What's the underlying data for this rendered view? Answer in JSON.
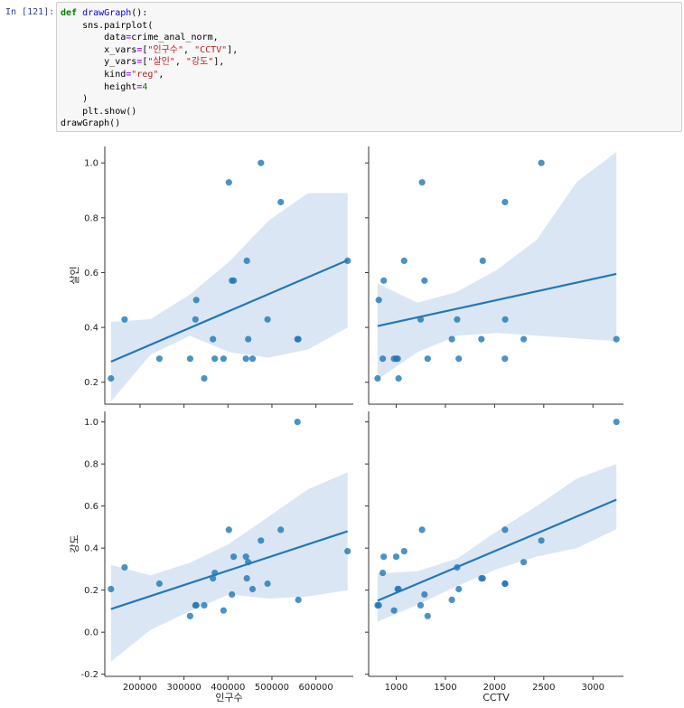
{
  "cell": {
    "prompt": "In [121]:",
    "code_lines": [
      [
        {
          "t": "def",
          "c": "kw"
        },
        {
          "t": " "
        },
        {
          "t": "drawGraph",
          "c": "fn"
        },
        {
          "t": "():"
        }
      ],
      [
        {
          "t": "    sns.pairplot("
        }
      ],
      [
        {
          "t": "        data"
        },
        {
          "t": "=",
          "c": "op"
        },
        {
          "t": "crime_anal_norm,"
        }
      ],
      [
        {
          "t": "        x_vars"
        },
        {
          "t": "=",
          "c": "op"
        },
        {
          "t": "["
        },
        {
          "t": "\"인구수\"",
          "c": "str"
        },
        {
          "t": ", "
        },
        {
          "t": "\"CCTV\"",
          "c": "str"
        },
        {
          "t": "],"
        }
      ],
      [
        {
          "t": "        y_vars"
        },
        {
          "t": "=",
          "c": "op"
        },
        {
          "t": "["
        },
        {
          "t": "\"살인\"",
          "c": "str"
        },
        {
          "t": ", "
        },
        {
          "t": "\"강도\"",
          "c": "str"
        },
        {
          "t": "],"
        }
      ],
      [
        {
          "t": "        kind"
        },
        {
          "t": "=",
          "c": "op"
        },
        {
          "t": "\"reg\"",
          "c": "str"
        },
        {
          "t": ","
        }
      ],
      [
        {
          "t": "        height"
        },
        {
          "t": "=",
          "c": "op"
        },
        {
          "t": "4",
          "c": "num"
        }
      ],
      [
        {
          "t": "    )"
        }
      ],
      [
        {
          "t": "    plt.show()"
        }
      ],
      [
        {
          "t": "drawGraph()"
        }
      ]
    ]
  },
  "colors": {
    "point": "#1f77b4",
    "line": "#2477b8",
    "band": "#c6d9ec"
  },
  "chart_data": {
    "type": "scatter",
    "kind": "pairplot-regression",
    "x_vars": [
      "인구수",
      "CCTV"
    ],
    "y_vars": [
      "살인",
      "강도"
    ],
    "xlabels": [
      "인구수",
      "CCTV"
    ],
    "ylabels": [
      "살인",
      "강도"
    ],
    "x_axes": [
      {
        "ticks": [
          200000,
          300000,
          400000,
          500000,
          600000
        ],
        "tick_labels": [
          "200000",
          "300000",
          "400000",
          "500000",
          "600000"
        ],
        "xlim": [
          120000,
          685000
        ]
      },
      {
        "ticks": [
          1000,
          1500,
          2000,
          2500,
          3000
        ],
        "tick_labels": [
          "1000",
          "1500",
          "2000",
          "2500",
          "3000"
        ],
        "xlim": [
          720,
          3310
        ]
      }
    ],
    "y_axes": [
      {
        "ticks": [
          0.2,
          0.4,
          0.6,
          0.8,
          1.0
        ],
        "tick_labels": [
          "0.2",
          "0.4",
          "0.6",
          "0.8",
          "1.0"
        ],
        "ylim": [
          0.12,
          1.06
        ]
      },
      {
        "ticks": [
          -0.2,
          0.0,
          0.2,
          0.4,
          0.6,
          0.8,
          1.0
        ],
        "tick_labels": [
          "-0.2",
          "0.0",
          "0.2",
          "0.4",
          "0.6",
          "0.8",
          "1.0"
        ],
        "ylim": [
          -0.21,
          1.05
        ]
      }
    ],
    "x_values": {
      "인구수": [
        134000,
        165000,
        244000,
        314000,
        326000,
        328000,
        346000,
        366000,
        370000,
        390000,
        402000,
        409000,
        413000,
        441000,
        443000,
        446000,
        456000,
        475000,
        490000,
        520000,
        558000,
        560000,
        672000
      ],
      "CCTV": [
        811,
        823,
        863,
        873,
        978,
        1000,
        1015,
        1024,
        1081,
        1248,
        1263,
        1288,
        1320,
        1566,
        1619,
        1636,
        1866,
        1880,
        2105,
        2106,
        2108,
        2296,
        2475,
        3238
      ]
    },
    "y_values": {
      "인구수_살인": [
        0.214,
        0.429,
        0.286,
        0.286,
        0.429,
        0.5,
        0.214,
        0.357,
        0.286,
        0.286,
        0.929,
        0.571,
        0.571,
        0.286,
        0.643,
        0.357,
        0.286,
        1.0,
        0.429,
        0.857,
        0.357,
        0.357,
        0.643
      ],
      "CCTV_살인": [
        0.214,
        0.5,
        0.286,
        0.571,
        0.286,
        0.286,
        0.286,
        0.214,
        0.643,
        0.429,
        0.929,
        0.571,
        0.286,
        0.357,
        0.429,
        0.286,
        0.357,
        0.643,
        0.286,
        0.857,
        0.429,
        0.357,
        1.0,
        0.357
      ],
      "인구수_강도": [
        0.205,
        0.308,
        0.231,
        0.077,
        0.128,
        0.128,
        0.128,
        0.256,
        0.282,
        0.103,
        0.487,
        0.179,
        0.359,
        0.359,
        0.256,
        0.333,
        0.205,
        0.436,
        0.231,
        0.487,
        1.0,
        0.154,
        0.385
      ],
      "CCTV_강도": [
        0.128,
        0.128,
        0.282,
        0.359,
        0.103,
        0.359,
        0.205,
        0.205,
        0.385,
        0.128,
        0.487,
        0.179,
        0.077,
        0.154,
        0.308,
        0.205,
        0.256,
        0.256,
        0.231,
        0.487,
        0.231,
        0.333,
        0.436,
        1.0
      ]
    },
    "regression": [
      {
        "x": "인구수",
        "y": "살인",
        "x0": 134000,
        "y0": 0.275,
        "x1": 672000,
        "y1": 0.645,
        "ci_lo": [
          0.13,
          0.3,
          0.37,
          0.31,
          0.29,
          0.32,
          0.4
        ],
        "ci_hi": [
          0.42,
          0.43,
          0.52,
          0.64,
          0.79,
          0.89,
          0.89
        ]
      },
      {
        "x": "CCTV",
        "y": "살인",
        "x0": 811,
        "y0": 0.405,
        "x1": 3238,
        "y1": 0.595,
        "ci_lo": [
          0.21,
          0.31,
          0.37,
          0.38,
          0.37,
          0.36,
          0.35
        ],
        "ci_hi": [
          0.56,
          0.49,
          0.53,
          0.61,
          0.72,
          0.93,
          1.04
        ]
      },
      {
        "x": "인구수",
        "y": "강도",
        "x0": 134000,
        "y0": 0.11,
        "x1": 672000,
        "y1": 0.48,
        "ci_lo": [
          -0.14,
          0.01,
          0.1,
          0.18,
          0.16,
          0.17,
          0.2
        ],
        "ci_hi": [
          0.32,
          0.27,
          0.33,
          0.42,
          0.55,
          0.68,
          0.76
        ]
      },
      {
        "x": "CCTV",
        "y": "강도",
        "x0": 811,
        "y0": 0.15,
        "x1": 3238,
        "y1": 0.63,
        "ci_lo": [
          0.05,
          0.13,
          0.22,
          0.3,
          0.36,
          0.4,
          0.49
        ],
        "ci_hi": [
          0.28,
          0.29,
          0.35,
          0.48,
          0.6,
          0.73,
          0.8
        ]
      }
    ]
  }
}
